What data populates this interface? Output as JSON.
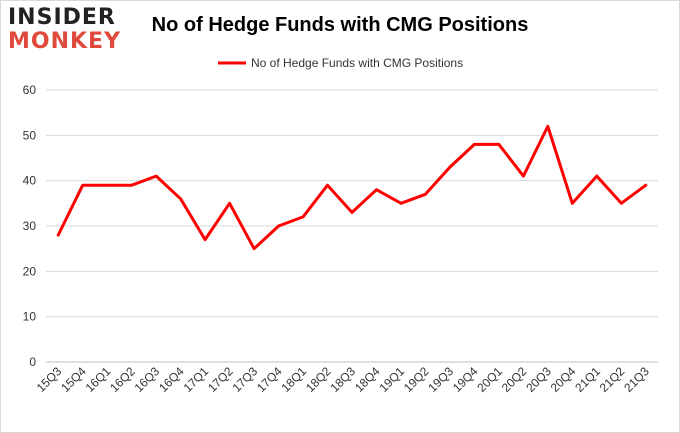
{
  "logo": {
    "line1": "INSIDER",
    "line2": "MONKEY"
  },
  "chart_data": {
    "type": "line",
    "title": "No of Hedge Funds with CMG Positions",
    "legend": "top-center",
    "grid": true,
    "xlabel": "",
    "ylabel": "",
    "ylim": [
      0,
      60
    ],
    "yticks": [
      0,
      10,
      20,
      30,
      40,
      50,
      60
    ],
    "categories": [
      "15Q3",
      "15Q4",
      "16Q1",
      "16Q2",
      "16Q3",
      "16Q4",
      "17Q1",
      "17Q2",
      "17Q3",
      "17Q4",
      "18Q1",
      "18Q2",
      "18Q3",
      "18Q4",
      "19Q1",
      "19Q2",
      "19Q3",
      "19Q4",
      "20Q1",
      "20Q2",
      "20Q3",
      "20Q4",
      "21Q1",
      "21Q2",
      "21Q3"
    ],
    "series": [
      {
        "name": "No of Hedge Funds with CMG Positions",
        "color": "#ff0000",
        "values": [
          28,
          39,
          39,
          39,
          41,
          36,
          27,
          35,
          25,
          30,
          32,
          39,
          33,
          38,
          35,
          37,
          43,
          48,
          48,
          41,
          52,
          35,
          41,
          35,
          39
        ]
      }
    ]
  }
}
